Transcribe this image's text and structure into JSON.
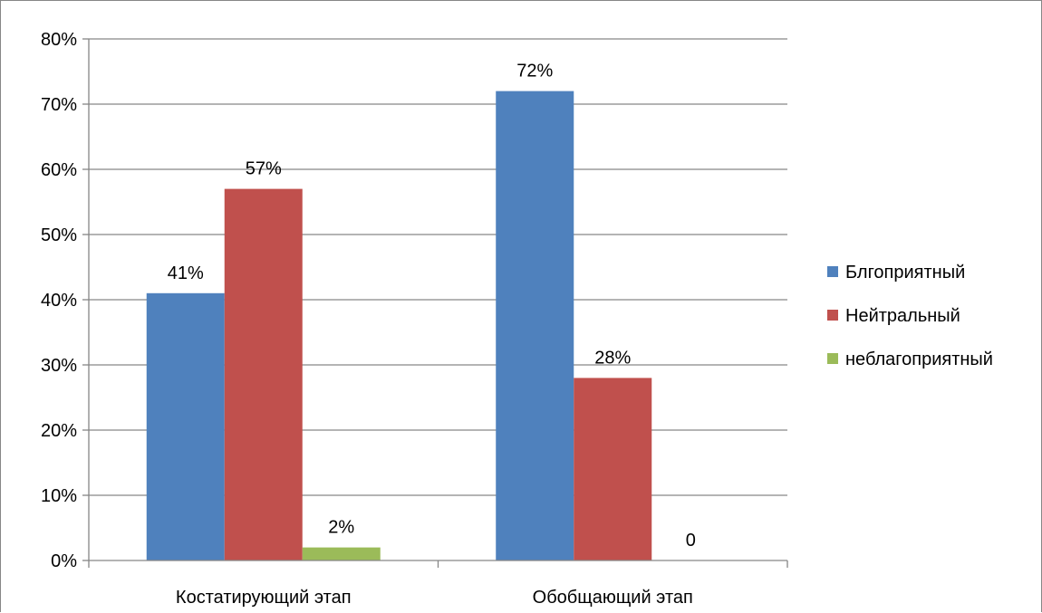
{
  "chart_data": {
    "type": "bar",
    "title": "",
    "xlabel": "",
    "ylabel": "",
    "categories": [
      "Костатирующий этап",
      "Обобщающий этап"
    ],
    "series": [
      {
        "name": "Блгоприятный",
        "color": "#4F81BD",
        "values": [
          41,
          72
        ],
        "labels": [
          "41%",
          "72%"
        ]
      },
      {
        "name": "Нейтральный",
        "color": "#C0504D",
        "values": [
          57,
          28
        ],
        "labels": [
          "57%",
          "28%"
        ]
      },
      {
        "name": "неблагоприятный",
        "color": "#9BBB59",
        "values": [
          2,
          0
        ],
        "labels": [
          "2%",
          "0"
        ]
      }
    ],
    "ylim": [
      0,
      80
    ],
    "yticks": [
      0,
      10,
      20,
      30,
      40,
      50,
      60,
      70,
      80
    ],
    "ytick_labels": [
      "0%",
      "10%",
      "20%",
      "30%",
      "40%",
      "50%",
      "60%",
      "70%",
      "80%"
    ],
    "grid": true,
    "legend_position": "right"
  }
}
